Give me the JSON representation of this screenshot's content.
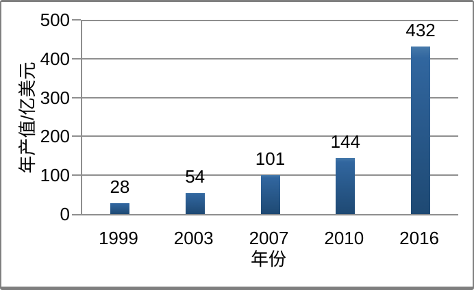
{
  "chart_data": {
    "type": "bar",
    "categories": [
      "1999",
      "2003",
      "2007",
      "2010",
      "2016"
    ],
    "values": [
      28,
      54,
      101,
      144,
      432
    ],
    "title": "",
    "xlabel": "年份",
    "ylabel": "年产值/亿美元",
    "ylim": [
      0,
      500
    ],
    "ytick_step": 100,
    "ytick_labels": [
      "0",
      "100",
      "200",
      "300",
      "400",
      "500"
    ],
    "grid": true,
    "legend": false,
    "show_value_labels": true
  },
  "style": {
    "bar_color_top": "#4679aa",
    "bar_color_upper": "#31669f",
    "bar_color_bottom": "#1e4973",
    "grid_color": "#8e8e8e",
    "frame_border_color": "#7f7f7f",
    "background": "#ffffff",
    "text_color": "#000000"
  }
}
